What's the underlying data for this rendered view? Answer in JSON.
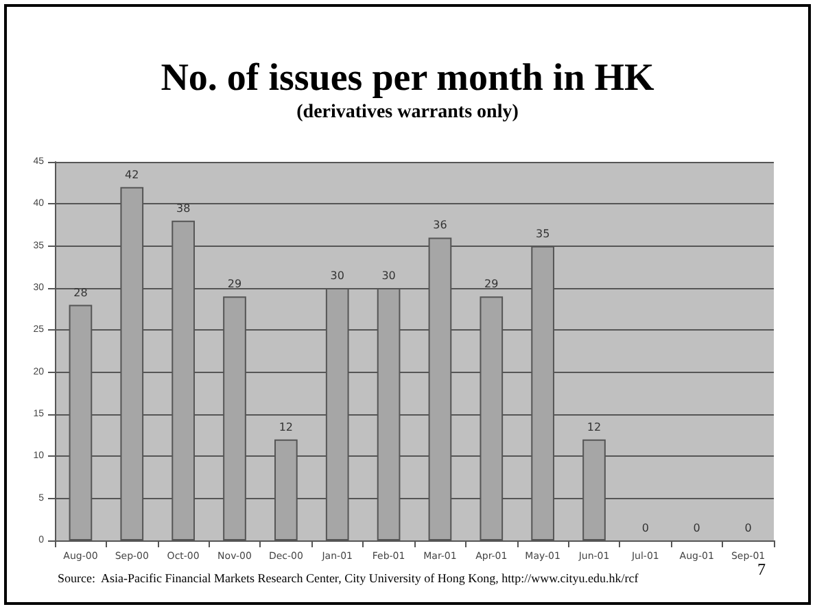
{
  "chart_data": {
    "type": "bar",
    "title": "No. of issues per month in HK",
    "subtitle": "(derivatives warrants only)",
    "categories": [
      "Aug-00",
      "Sep-00",
      "Oct-00",
      "Nov-00",
      "Dec-00",
      "Jan-01",
      "Feb-01",
      "Mar-01",
      "Apr-01",
      "May-01",
      "Jun-01",
      "Jul-01",
      "Aug-01",
      "Sep-01"
    ],
    "values": [
      28,
      42,
      38,
      29,
      12,
      30,
      30,
      36,
      29,
      35,
      12,
      0,
      0,
      0
    ],
    "color": "#a6a6a6",
    "ylim": [
      0,
      45
    ],
    "yticks": [
      0,
      5,
      10,
      15,
      20,
      25,
      30,
      35,
      40,
      45
    ],
    "grid": "y",
    "data_labels": true,
    "annotations": [
      "Source:  Asia-Pacific Financial Markets Research Center, City University of Hong Kong, http://www.cityu.edu.hk/rcf",
      "7"
    ]
  }
}
